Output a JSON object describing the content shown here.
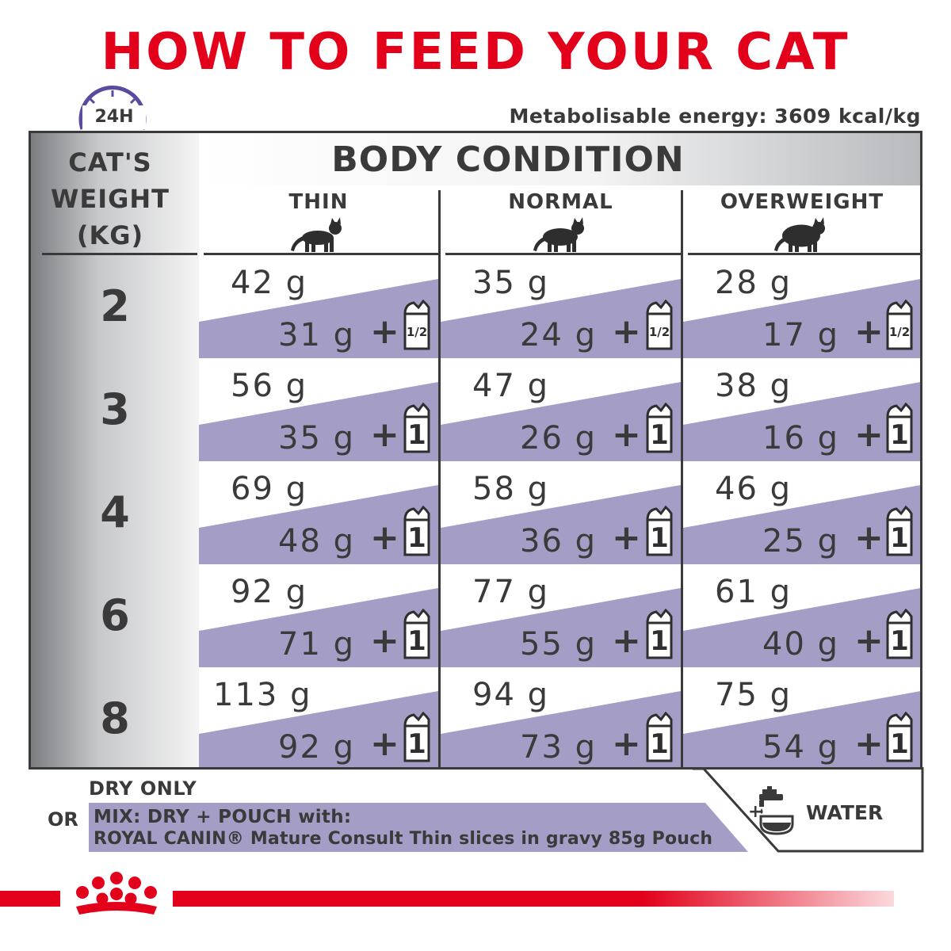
{
  "title": "HOW TO FEED YOUR CAT",
  "energy": "Metabolisable energy: 3609 kcal/kg",
  "clock_label": "24H",
  "header": {
    "body_condition": "BODY CONDITION",
    "weight_line1": "CAT'S",
    "weight_line2": "WEIGHT",
    "weight_line3": "(KG)",
    "columns": [
      "THIN",
      "NORMAL",
      "OVERWEIGHT"
    ]
  },
  "rows": [
    {
      "weight": "2",
      "cells": [
        {
          "dry": "42 g",
          "mix": "31 g",
          "pouch": "1/2"
        },
        {
          "dry": "35 g",
          "mix": "24 g",
          "pouch": "1/2"
        },
        {
          "dry": "28 g",
          "mix": "17 g",
          "pouch": "1/2"
        }
      ]
    },
    {
      "weight": "3",
      "cells": [
        {
          "dry": "56 g",
          "mix": "35 g",
          "pouch": "1"
        },
        {
          "dry": "47 g",
          "mix": "26 g",
          "pouch": "1"
        },
        {
          "dry": "38 g",
          "mix": "16 g",
          "pouch": "1"
        }
      ]
    },
    {
      "weight": "4",
      "cells": [
        {
          "dry": "69 g",
          "mix": "48 g",
          "pouch": "1"
        },
        {
          "dry": "58 g",
          "mix": "36 g",
          "pouch": "1"
        },
        {
          "dry": "46 g",
          "mix": "25 g",
          "pouch": "1"
        }
      ]
    },
    {
      "weight": "6",
      "cells": [
        {
          "dry": "92 g",
          "mix": "71 g",
          "pouch": "1"
        },
        {
          "dry": "77 g",
          "mix": "55 g",
          "pouch": "1"
        },
        {
          "dry": "61 g",
          "mix": "40 g",
          "pouch": "1"
        }
      ]
    },
    {
      "weight": "8",
      "cells": [
        {
          "dry": "113 g",
          "mix": "92 g",
          "pouch": "1"
        },
        {
          "dry": "94 g",
          "mix": "73 g",
          "pouch": "1"
        },
        {
          "dry": "75 g",
          "mix": "54 g",
          "pouch": "1"
        }
      ]
    }
  ],
  "plus_sign": "+",
  "footer": {
    "dry_only": "DRY ONLY",
    "or": "OR",
    "mix_line1": "MIX: DRY + POUCH with:",
    "mix_line2": "ROYAL CANIN® Mature Consult Thin slices in gravy 85g Pouch",
    "water_plus": "+",
    "water": "WATER"
  },
  "colors": {
    "brand_red": "#e2001a",
    "purple_band": "#a49ec6",
    "clock_purple": "#5b4a9e",
    "text_dark": "#3a3a3a"
  },
  "icons": [
    "clock-icon",
    "cat-silhouette-icon",
    "pouch-icon",
    "water-tap-icon",
    "royal-canin-crown-logo"
  ]
}
